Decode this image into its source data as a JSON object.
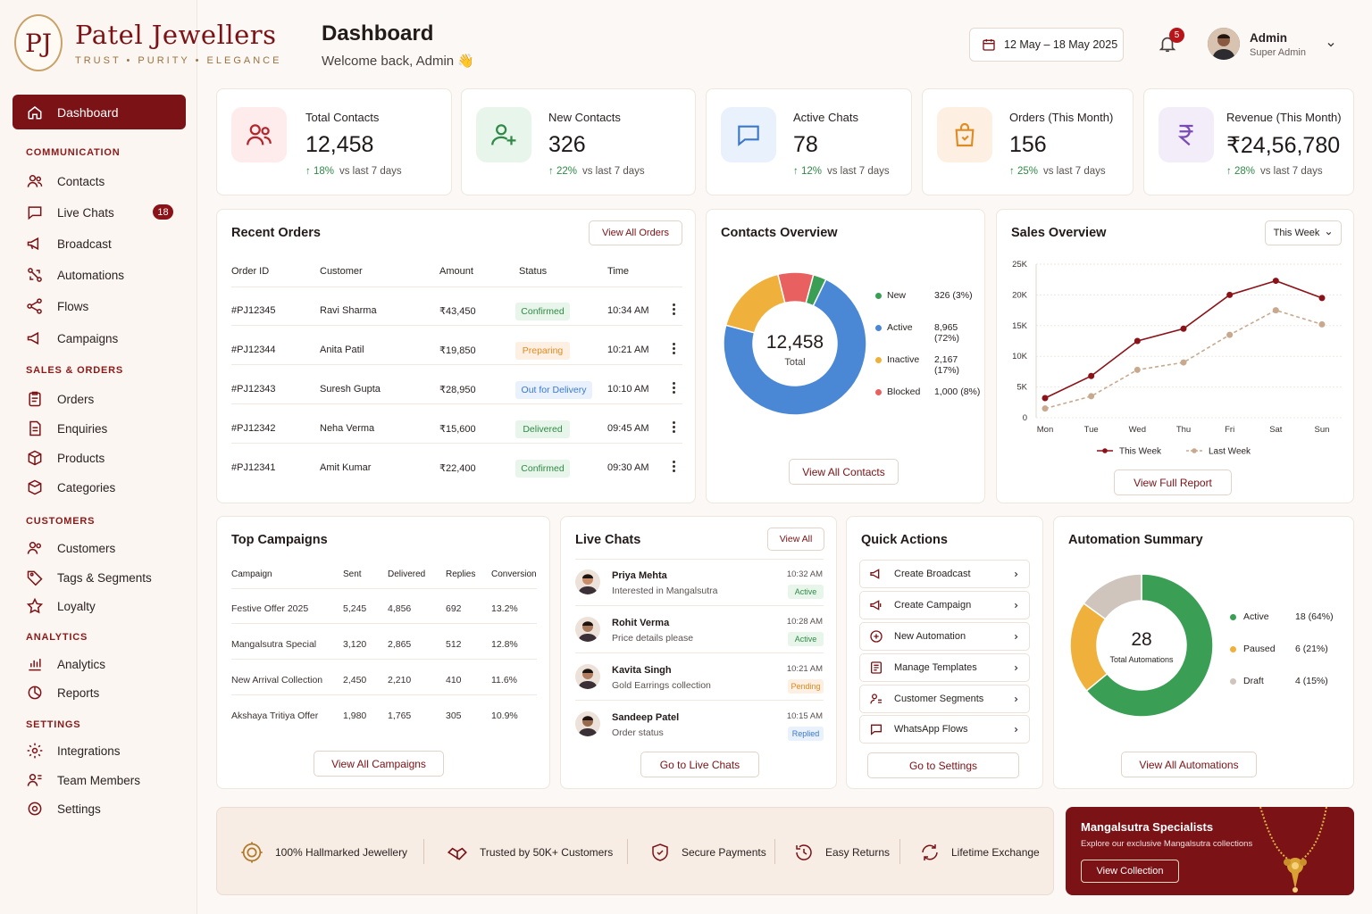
{
  "brand": {
    "initials": "PJ",
    "name": "Patel Jewellers",
    "tagline": "TRUST • PURITY • ELEGANCE"
  },
  "sidebar": {
    "active": "Dashboard",
    "sections": [
      {
        "title": "COMMUNICATION",
        "items": [
          "Contacts",
          "Live Chats",
          "Broadcast",
          "Automations",
          "Flows",
          "Campaigns"
        ]
      },
      {
        "title": "SALES & ORDERS",
        "items": [
          "Orders",
          "Enquiries",
          "Products",
          "Categories"
        ]
      },
      {
        "title": "CUSTOMERS",
        "items": [
          "Customers",
          "Tags & Segments",
          "Loyalty"
        ]
      },
      {
        "title": "ANALYTICS",
        "items": [
          "Analytics",
          "Reports"
        ]
      },
      {
        "title": "SETTINGS",
        "items": [
          "Integrations",
          "Team Members",
          "Settings"
        ]
      }
    ],
    "live_chats_badge": "18"
  },
  "header": {
    "title": "Dashboard",
    "subtitle": "Welcome back, Admin 👋",
    "date_range": "12 May – 18 May 2025",
    "notifications": "5",
    "user_name": "Admin",
    "user_role": "Super Admin"
  },
  "stats": [
    {
      "label": "Total Contacts",
      "value": "12,458",
      "delta": "18%",
      "period": "vs last 7 days"
    },
    {
      "label": "New Contacts",
      "value": "326",
      "delta": "22%",
      "period": "vs last 7 days"
    },
    {
      "label": "Active Chats",
      "value": "78",
      "delta": "12%",
      "period": "vs last 7 days"
    },
    {
      "label": "Orders (This Month)",
      "value": "156",
      "delta": "25%",
      "period": "vs last 7 days"
    },
    {
      "label": "Revenue (This Month)",
      "value": "₹24,56,780",
      "delta": "28%",
      "period": "vs last 7 days"
    }
  ],
  "recent_orders": {
    "title": "Recent Orders",
    "button": "View All Orders",
    "columns": [
      "Order ID",
      "Customer",
      "Amount",
      "Status",
      "Time"
    ],
    "rows": [
      {
        "id": "#PJ12345",
        "customer": "Ravi Sharma",
        "amount": "₹43,450",
        "status": "Confirmed",
        "time": "10:34 AM"
      },
      {
        "id": "#PJ12344",
        "customer": "Anita Patil",
        "amount": "₹19,850",
        "status": "Preparing",
        "time": "10:21 AM"
      },
      {
        "id": "#PJ12343",
        "customer": "Suresh Gupta",
        "amount": "₹28,950",
        "status": "Out for Delivery",
        "time": "10:10 AM"
      },
      {
        "id": "#PJ12342",
        "customer": "Neha Verma",
        "amount": "₹15,600",
        "status": "Delivered",
        "time": "09:45 AM"
      },
      {
        "id": "#PJ12341",
        "customer": "Amit Kumar",
        "amount": "₹22,400",
        "status": "Confirmed",
        "time": "09:30 AM"
      }
    ]
  },
  "contacts_overview": {
    "title": "Contacts Overview",
    "center_value": "12,458",
    "center_label": "Total",
    "button": "View All Contacts",
    "segments": [
      {
        "label": "New",
        "value": "326 (3%)",
        "share": 3,
        "color": "#3a9e55"
      },
      {
        "label": "Active",
        "value": "8,965 (72%)",
        "share": 72,
        "color": "#4a88d6"
      },
      {
        "label": "Inactive",
        "value": "2,167 (17%)",
        "share": 17,
        "color": "#f0b13c"
      },
      {
        "label": "Blocked",
        "value": "1,000 (8%)",
        "share": 8,
        "color": "#e86060"
      }
    ]
  },
  "chart_data": {
    "type": "line",
    "title": "Sales Overview",
    "filter": "This Week",
    "categories": [
      "Mon",
      "Tue",
      "Wed",
      "Thu",
      "Fri",
      "Sat",
      "Sun"
    ],
    "yticks": [
      "25K",
      "20K",
      "15K",
      "10K",
      "5K",
      "0"
    ],
    "ylim": [
      0,
      25000
    ],
    "series": [
      {
        "name": "This Week",
        "color": "#8a1218",
        "values": [
          3200,
          6800,
          12500,
          14500,
          20000,
          22300,
          19500
        ]
      },
      {
        "name": "Last Week",
        "color": "#c9a98e",
        "values": [
          1500,
          3500,
          7800,
          9000,
          13500,
          17500,
          15200
        ]
      }
    ],
    "button": "View Full Report"
  },
  "top_campaigns": {
    "title": "Top Campaigns",
    "columns": [
      "Campaign",
      "Sent",
      "Delivered",
      "Replies",
      "Conversion"
    ],
    "rows": [
      [
        "Festive Offer 2025",
        "5,245",
        "4,856",
        "692",
        "13.2%"
      ],
      [
        "Mangalsutra Special",
        "3,120",
        "2,865",
        "512",
        "12.8%"
      ],
      [
        "New Arrival Collection",
        "2,450",
        "2,210",
        "410",
        "11.6%"
      ],
      [
        "Akshaya Tritiya Offer",
        "1,980",
        "1,765",
        "305",
        "10.9%"
      ]
    ],
    "button": "View All Campaigns"
  },
  "live_chats": {
    "title": "Live Chats",
    "view_all": "View All",
    "button": "Go to Live Chats",
    "items": [
      {
        "name": "Priya Mehta",
        "msg": "Interested in Mangalsutra",
        "time": "10:32 AM",
        "status": "Active"
      },
      {
        "name": "Rohit Verma",
        "msg": "Price details please",
        "time": "10:28 AM",
        "status": "Active"
      },
      {
        "name": "Kavita Singh",
        "msg": "Gold Earrings collection",
        "time": "10:21 AM",
        "status": "Pending"
      },
      {
        "name": "Sandeep Patel",
        "msg": "Order status",
        "time": "10:15 AM",
        "status": "Replied"
      }
    ]
  },
  "quick_actions": {
    "title": "Quick Actions",
    "items": [
      "Create Broadcast",
      "Create Campaign",
      "New Automation",
      "Manage Templates",
      "Customer Segments",
      "WhatsApp Flows"
    ],
    "button": "Go to Settings"
  },
  "automation_summary": {
    "title": "Automation Summary",
    "center_value": "28",
    "center_label": "Total Automations",
    "segments": [
      {
        "label": "Active",
        "value": "18 (64%)",
        "share": 64,
        "color": "#3a9e55"
      },
      {
        "label": "Paused",
        "value": "6 (21%)",
        "share": 21,
        "color": "#f0b13c"
      },
      {
        "label": "Draft",
        "value": "4 (15%)",
        "share": 15,
        "color": "#cfc5bc"
      }
    ],
    "button": "View All Automations"
  },
  "footer": {
    "features": [
      "100% Hallmarked Jewellery",
      "Trusted by 50K+ Customers",
      "Secure Payments",
      "Easy Returns",
      "Lifetime Exchange"
    ]
  },
  "promo": {
    "title": "Mangalsutra Specialists",
    "subtitle": "Explore our exclusive Mangalsutra collections",
    "button": "View Collection"
  }
}
